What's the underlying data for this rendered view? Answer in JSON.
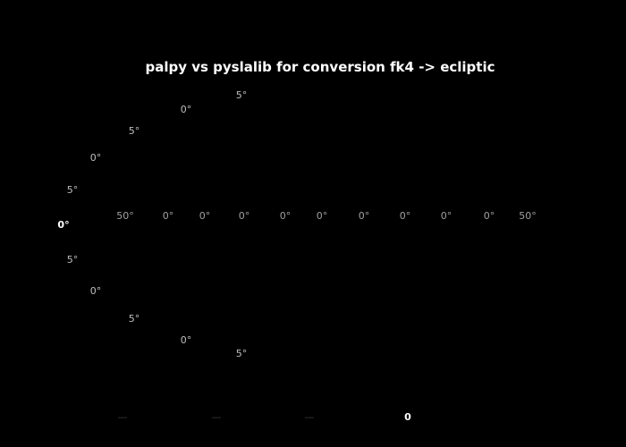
{
  "chart_data": {
    "type": "scatter",
    "projection": "mollweide",
    "title": "palpy vs pyslalib for conversion fk4 -> ecliptic",
    "background": "#000000",
    "declination_labels": [
      "5°",
      "0°",
      "5°",
      "0°",
      "5°",
      "0°",
      "5°",
      "0°",
      "5°",
      "0°",
      "5°"
    ],
    "declination_label_is_bright": [
      false,
      false,
      false,
      false,
      false,
      true,
      false,
      false,
      false,
      false,
      false
    ],
    "ra_labels": [
      "50°",
      "0°",
      "0°",
      "0°",
      "0°",
      "0°",
      "0°",
      "0°",
      "0°",
      "0°",
      "50°"
    ],
    "colorbar_ticks": [
      "—",
      "—",
      "—",
      "0"
    ],
    "colorbar_tick_is_bright": [
      false,
      false,
      false,
      true
    ],
    "colorbar_label": "",
    "series": [],
    "grid": true,
    "legend": "none"
  }
}
